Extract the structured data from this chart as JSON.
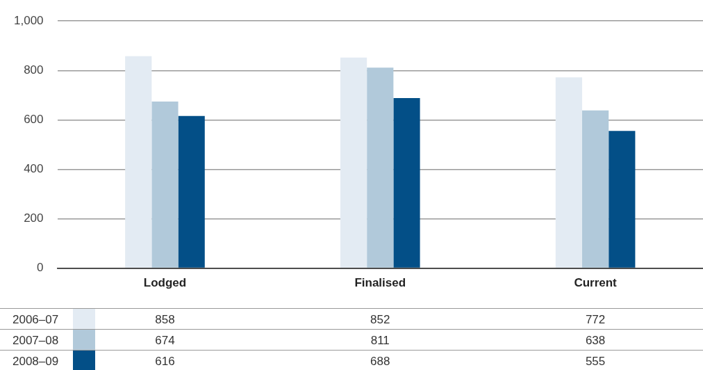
{
  "chart_data": {
    "type": "bar",
    "categories": [
      "Lodged",
      "Finalised",
      "Current"
    ],
    "series": [
      {
        "name": "2006–07",
        "color": "#e3ebf3",
        "values": [
          858,
          852,
          772
        ]
      },
      {
        "name": "2007–08",
        "color": "#b1c9da",
        "values": [
          674,
          811,
          638
        ]
      },
      {
        "name": "2008–09",
        "color": "#034f87",
        "values": [
          616,
          688,
          555
        ]
      }
    ],
    "ylim": [
      0,
      1000
    ],
    "yticks": [
      0,
      200,
      400,
      600,
      800,
      {
        "value": 1000,
        "label": "1,000"
      }
    ],
    "grid": "y",
    "legend": "bottom",
    "data_labels": true
  }
}
